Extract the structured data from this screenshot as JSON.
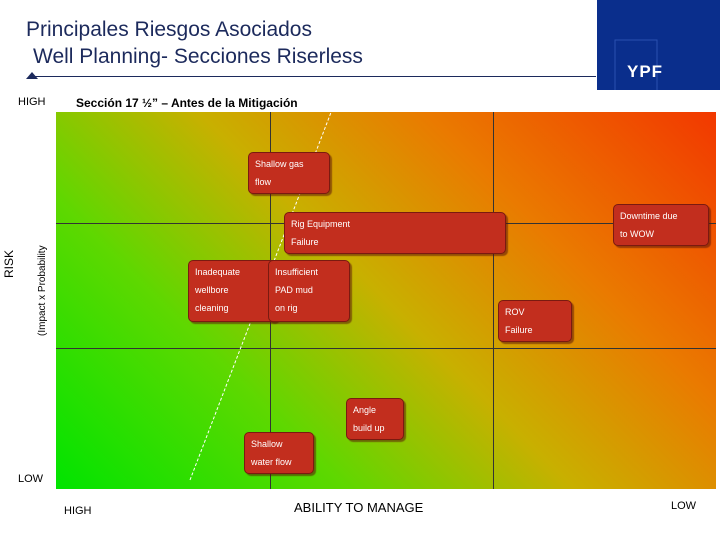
{
  "header": {
    "title": "Principales Riesgos Asociados",
    "subtitle": "Well Planning- Secciones Riserless",
    "logo_text": "YPF",
    "brand_color": "#0a2e8c"
  },
  "matrix": {
    "section_title": "Sección 17 ½” – Antes de la Mitigación",
    "y_axis": {
      "top": "HIGH",
      "bottom": "LOW",
      "label": "RISK",
      "sublabel": "(Impact x Probability"
    },
    "x_axis": {
      "left": "HIGH",
      "right": "LOW",
      "label": "ABILITY TO MANAGE"
    }
  },
  "risks": [
    {
      "lines": [
        "Shallow gas",
        "flow"
      ]
    },
    {
      "lines": [
        "Rig  Equipment",
        "Failure"
      ]
    },
    {
      "lines": [
        "Downtime due",
        "to WOW"
      ]
    },
    {
      "lines": [
        "Inadequate",
        "wellbore",
        "cleaning"
      ]
    },
    {
      "lines": [
        "Insufficient",
        "PAD mud",
        "on rig"
      ]
    },
    {
      "lines": [
        "ROV",
        "Failure"
      ]
    },
    {
      "lines": [
        "Angle",
        "build up"
      ]
    },
    {
      "lines": [
        "Shallow",
        "water flow"
      ]
    }
  ]
}
